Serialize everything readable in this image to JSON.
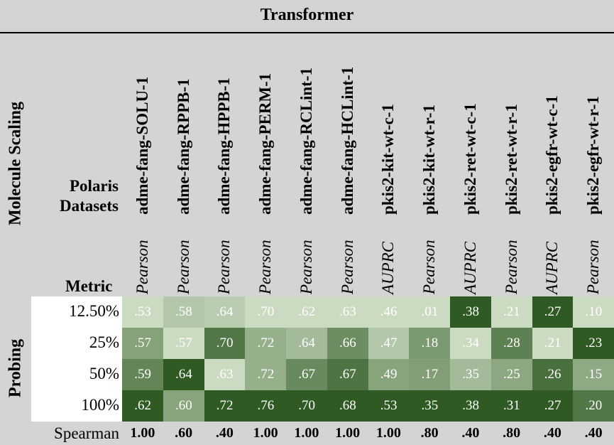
{
  "title": "Transformer",
  "side_label": "Molecule Scaling",
  "probing_label": "Probing",
  "datasets_label": [
    "Polaris",
    "Datasets"
  ],
  "metric_label": "Metric",
  "columns": [
    {
      "name": "adme-fang-SOLU-1",
      "metric": "Pearson"
    },
    {
      "name": "adme-fang-RPPB-1",
      "metric": "Pearson"
    },
    {
      "name": "adme-fang-HPPB-1",
      "metric": "Pearson"
    },
    {
      "name": "adme-fang-PERM-1",
      "metric": "Pearson"
    },
    {
      "name": "adme-fang-RCLint-1",
      "metric": "Pearson"
    },
    {
      "name": "adme-fang-HCLint-1",
      "metric": "Pearson"
    },
    {
      "name": "pkis2-kit-wt-c-1",
      "metric": "AUPRC"
    },
    {
      "name": "pkis2-kit-wt-r-1",
      "metric": "Pearson"
    },
    {
      "name": "pkis2-ret-wt-c-1",
      "metric": "AUPRC"
    },
    {
      "name": "pkis2-ret-wt-r-1",
      "metric": "Pearson"
    },
    {
      "name": "pkis2-egfr-wt-c-1",
      "metric": "AUPRC"
    },
    {
      "name": "pkis2-egfr-wt-r-1",
      "metric": "Pearson"
    }
  ],
  "rows": [
    {
      "label": "12.50%",
      "values": [
        ".53",
        ".58",
        ".64",
        ".70",
        ".62",
        ".63",
        ".46",
        ".01",
        ".38",
        ".21",
        ".27",
        ".10"
      ]
    },
    {
      "label": "25%",
      "values": [
        ".57",
        ".57",
        ".70",
        ".72",
        ".64",
        ".66",
        ".47",
        ".18",
        ".34",
        ".28",
        ".21",
        ".23"
      ]
    },
    {
      "label": "50%",
      "values": [
        ".59",
        ".64",
        ".63",
        ".72",
        ".67",
        ".67",
        ".49",
        ".17",
        ".35",
        ".25",
        ".26",
        ".15"
      ]
    },
    {
      "label": "100%",
      "values": [
        ".62",
        ".60",
        ".72",
        ".76",
        ".70",
        ".68",
        ".53",
        ".35",
        ".38",
        ".31",
        ".27",
        ".20"
      ]
    }
  ],
  "spearman_label": "Spearman",
  "spearman": [
    "1.00",
    ".60",
    ".40",
    "1.00",
    "1.00",
    "1.00",
    "1.00",
    ".80",
    ".40",
    ".80",
    ".40",
    ".40"
  ],
  "colors": {
    "header_bg": "#d4d4d4",
    "heat_light": "#d7e6cf",
    "heat_dark": "#2f5a23"
  }
}
